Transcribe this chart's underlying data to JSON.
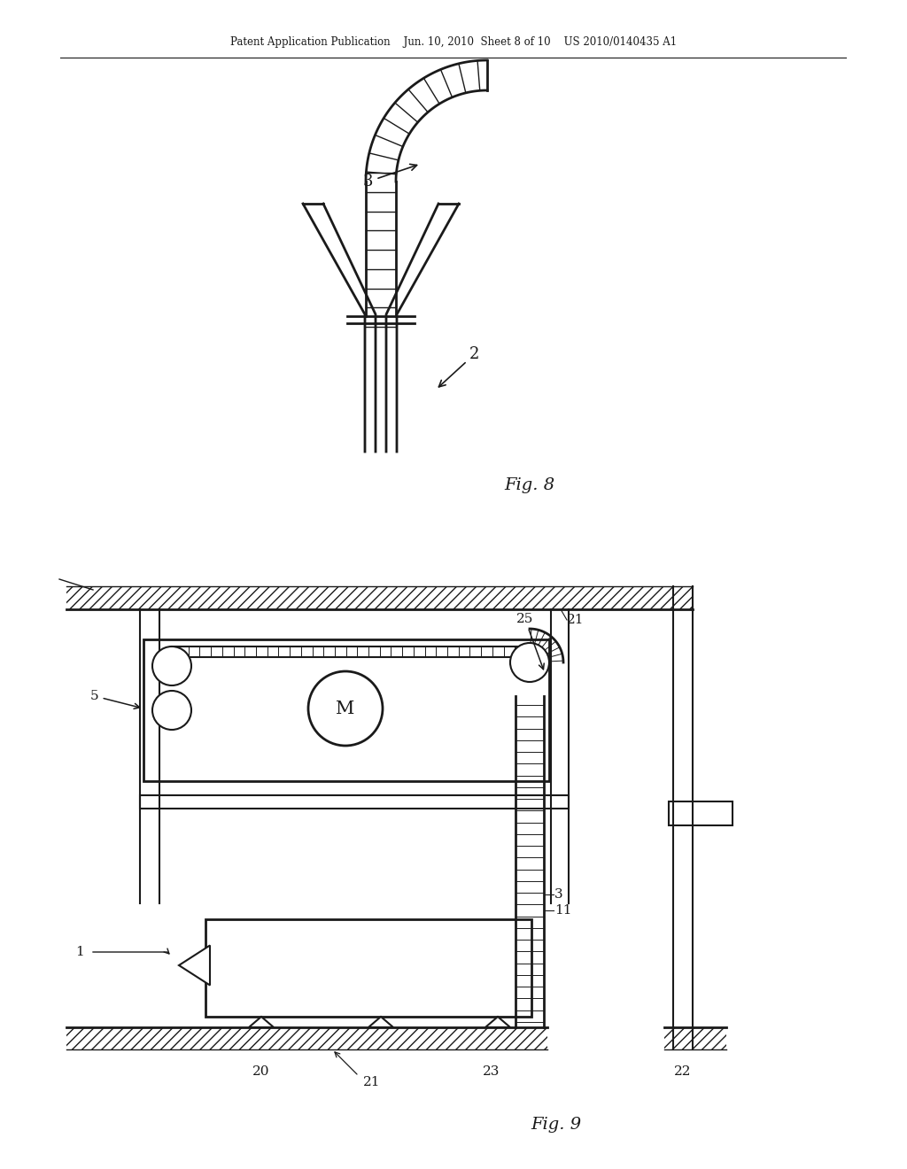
{
  "bg_color": "#ffffff",
  "lc": "#1a1a1a",
  "header": "Patent Application Publication    Jun. 10, 2010  Sheet 8 of 10    US 2010/0140435 A1",
  "fig8_label": "Fig. 8",
  "fig9_label": "Fig. 9"
}
